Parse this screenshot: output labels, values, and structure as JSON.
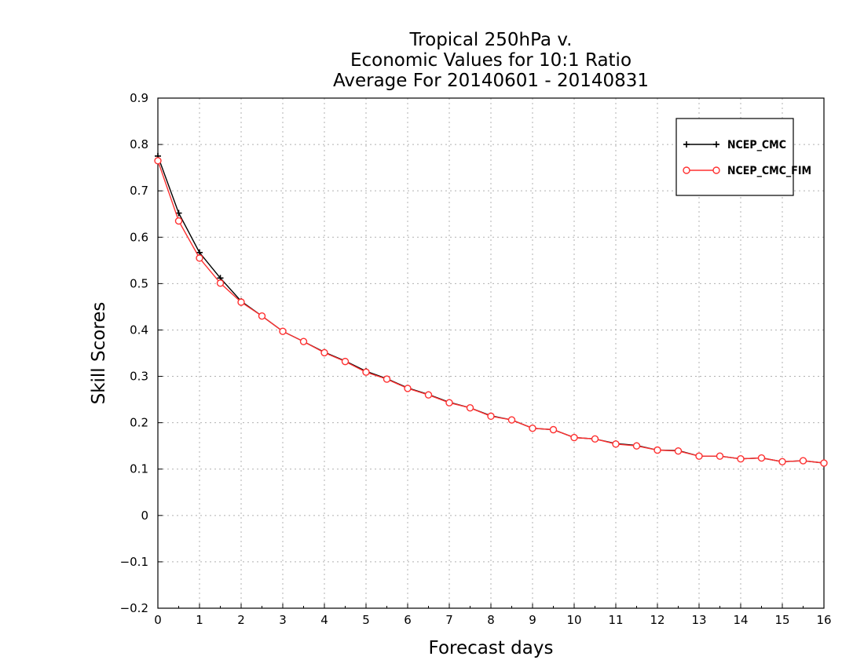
{
  "chart_data": {
    "type": "line",
    "title": [
      "Tropical 250hPa v.",
      "Economic Values for 10:1 Ratio",
      "Average For 20140601 - 20140831"
    ],
    "xlabel": "Forecast days",
    "ylabel": "Skill Scores",
    "xlim": [
      0,
      16
    ],
    "ylim": [
      -0.2,
      0.9
    ],
    "xticks": [
      0,
      1,
      2,
      3,
      4,
      5,
      6,
      7,
      8,
      9,
      10,
      11,
      12,
      13,
      14,
      15,
      16
    ],
    "xtick_labels": [
      "0",
      "1",
      "2",
      "3",
      "4",
      "5",
      "6",
      "7",
      "8",
      "9",
      "10",
      "11",
      "12",
      "13",
      "14",
      "15",
      "16"
    ],
    "yticks": [
      -0.2,
      -0.1,
      0,
      0.1,
      0.2,
      0.3,
      0.4,
      0.5,
      0.6,
      0.7,
      0.8,
      0.9
    ],
    "ytick_labels": [
      "−0.2",
      "−0.1",
      "0",
      "0.1",
      "0.2",
      "0.3",
      "0.4",
      "0.5",
      "0.6",
      "0.7",
      "0.8",
      "0.9"
    ],
    "grid": true,
    "legend_position": "top-right",
    "x": [
      0,
      0.5,
      1,
      1.5,
      2,
      2.5,
      3,
      3.5,
      4,
      4.5,
      5,
      5.5,
      6,
      6.5,
      7,
      7.5,
      8,
      8.5,
      9,
      9.5,
      10,
      10.5,
      11,
      11.5,
      12,
      12.5,
      13,
      13.5,
      14,
      14.5,
      15,
      15.5,
      16
    ],
    "series": [
      {
        "name": "NCEP_CMC",
        "color": "#000000",
        "marker": "plus",
        "values": [
          0.775,
          0.652,
          0.567,
          0.512,
          0.462,
          0.43,
          0.397,
          0.375,
          0.352,
          0.333,
          0.311,
          0.295,
          0.275,
          0.261,
          0.244,
          0.232,
          0.215,
          0.206,
          0.188,
          0.185,
          0.168,
          0.165,
          0.155,
          0.151,
          0.141,
          0.14,
          0.128,
          0.128,
          0.122,
          0.124,
          0.116,
          0.118,
          0.113
        ]
      },
      {
        "name": "NCEP_CMC_FIM",
        "color": "#ff3030",
        "marker": "circle",
        "values": [
          0.765,
          0.635,
          0.555,
          0.501,
          0.46,
          0.43,
          0.397,
          0.375,
          0.351,
          0.332,
          0.309,
          0.294,
          0.274,
          0.26,
          0.243,
          0.232,
          0.214,
          0.206,
          0.188,
          0.185,
          0.168,
          0.165,
          0.154,
          0.15,
          0.141,
          0.139,
          0.128,
          0.128,
          0.122,
          0.124,
          0.116,
          0.118,
          0.113
        ]
      }
    ]
  }
}
